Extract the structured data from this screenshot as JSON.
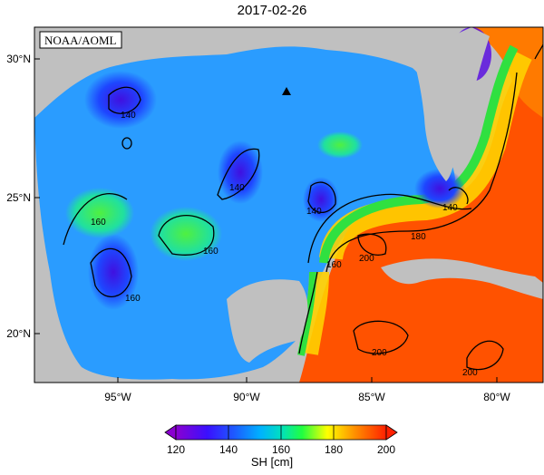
{
  "title": "2017-02-26",
  "agency_label": "NOAA/AOML",
  "lat_ticks": [
    "30°N",
    "25°N",
    "20°N"
  ],
  "lon_ticks": [
    "95°W",
    "90°W",
    "85°W",
    "80°W"
  ],
  "colorbar": {
    "label": "SH [cm]",
    "ticks": [
      "120",
      "140",
      "160",
      "180",
      "200"
    ],
    "range": [
      120,
      200
    ]
  },
  "contour_labels": [
    "140",
    "140",
    "140",
    "140",
    "160",
    "160",
    "160",
    "160",
    "180",
    "200",
    "200",
    "200"
  ],
  "colors": {
    "land": "#c0c0c0",
    "ocean_low": "#1f3fe0",
    "ocean_mid": "#2fb0ff",
    "loop_green": "#30e060",
    "loop_yellow": "#ffff00",
    "warm": "#ff5a00",
    "hot": "#ff3000"
  },
  "marker_icon": "triangle-marker-icon"
}
